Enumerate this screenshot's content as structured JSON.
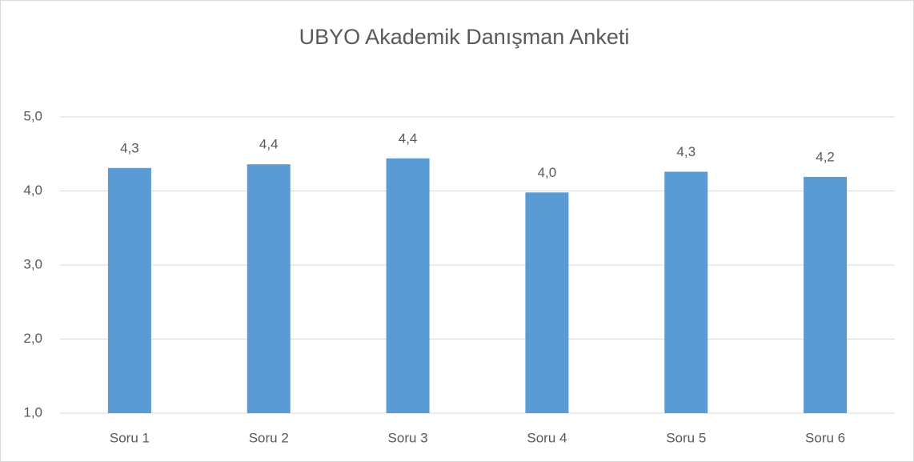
{
  "chart_data": {
    "type": "bar",
    "title": "UBYO Akademik Danışman Anketi",
    "categories": [
      "Soru 1",
      "Soru 2",
      "Soru 3",
      "Soru 4",
      "Soru 5",
      "Soru 6"
    ],
    "values": [
      4.31,
      4.36,
      4.44,
      3.98,
      4.26,
      4.19
    ],
    "value_labels": [
      "4,3",
      "4,4",
      "4,4",
      "4,0",
      "4,3",
      "4,2"
    ],
    "color": "#5b9bd5",
    "ylim": [
      1,
      5
    ],
    "yticks": [
      {
        "value": 1,
        "label": "1,0"
      },
      {
        "value": 2,
        "label": "2,0"
      },
      {
        "value": 3,
        "label": "3,0"
      },
      {
        "value": 4,
        "label": "4,0"
      },
      {
        "value": 5,
        "label": "5,0"
      }
    ],
    "grid": true
  }
}
